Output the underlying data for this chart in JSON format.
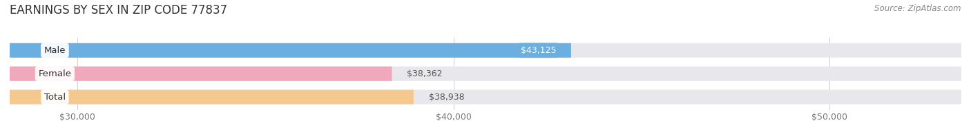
{
  "title": "EARNINGS BY SEX IN ZIP CODE 77837",
  "source": "Source: ZipAtlas.com",
  "categories": [
    "Male",
    "Female",
    "Total"
  ],
  "values": [
    43125,
    38362,
    38938
  ],
  "bar_colors": [
    "#6aafe0",
    "#f2a8bc",
    "#f5c98e"
  ],
  "bar_bg_color": "#e8e8ec",
  "value_labels": [
    "$43,125",
    "$38,362",
    "$38,938"
  ],
  "value_label_colors": [
    "white",
    "#555555",
    "#555555"
  ],
  "value_label_inside": [
    true,
    false,
    false
  ],
  "x_tick_labels": [
    "$30,000",
    "$40,000",
    "$50,000"
  ],
  "x_tick_values": [
    30000,
    40000,
    50000
  ],
  "xmin": 28200,
  "xmax": 53500,
  "bar_height": 0.62,
  "title_fontsize": 12,
  "source_fontsize": 8.5,
  "tick_fontsize": 9,
  "label_fontsize": 9.5,
  "value_fontsize": 9,
  "figwidth": 14.06,
  "figheight": 1.95,
  "dpi": 100
}
